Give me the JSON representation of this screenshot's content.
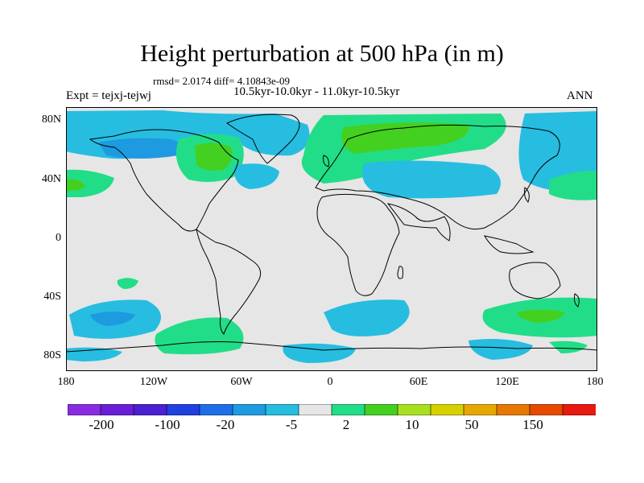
{
  "title": "Height perturbation at 500 hPa (in m)",
  "stats": "rmsd= 2.0174  diff= 4.10843e-09",
  "period": "10.5kyr-10.0kyr - 11.0kyr-10.5kyr",
  "experiment": "Expt = tejxj-tejwj",
  "season": "ANN",
  "map": {
    "lat_labels": [
      "80N",
      "40N",
      "0",
      "40S",
      "80S"
    ],
    "lon_labels": [
      "180",
      "120W",
      "60W",
      "0",
      "60E",
      "120E",
      "180"
    ]
  },
  "colorbar": {
    "colors": [
      "#8a2be2",
      "#6a1fd6",
      "#4a20d0",
      "#2040e0",
      "#1e6ee8",
      "#1e9ae0",
      "#26bde0",
      "#e6e6e6",
      "#22dd88",
      "#44d020",
      "#a8e020",
      "#d6d000",
      "#e6a800",
      "#e67800",
      "#e64a00",
      "#e61a10"
    ],
    "labels": [
      "-200",
      "-100",
      "-20",
      "-5",
      "2",
      "10",
      "50",
      "150"
    ]
  },
  "palette": {
    "background": "#e6e6e6",
    "negative": "#26bde0",
    "negative_strong": "#1e9ae0",
    "positive": "#22dd88",
    "positive_strong": "#44d020"
  }
}
